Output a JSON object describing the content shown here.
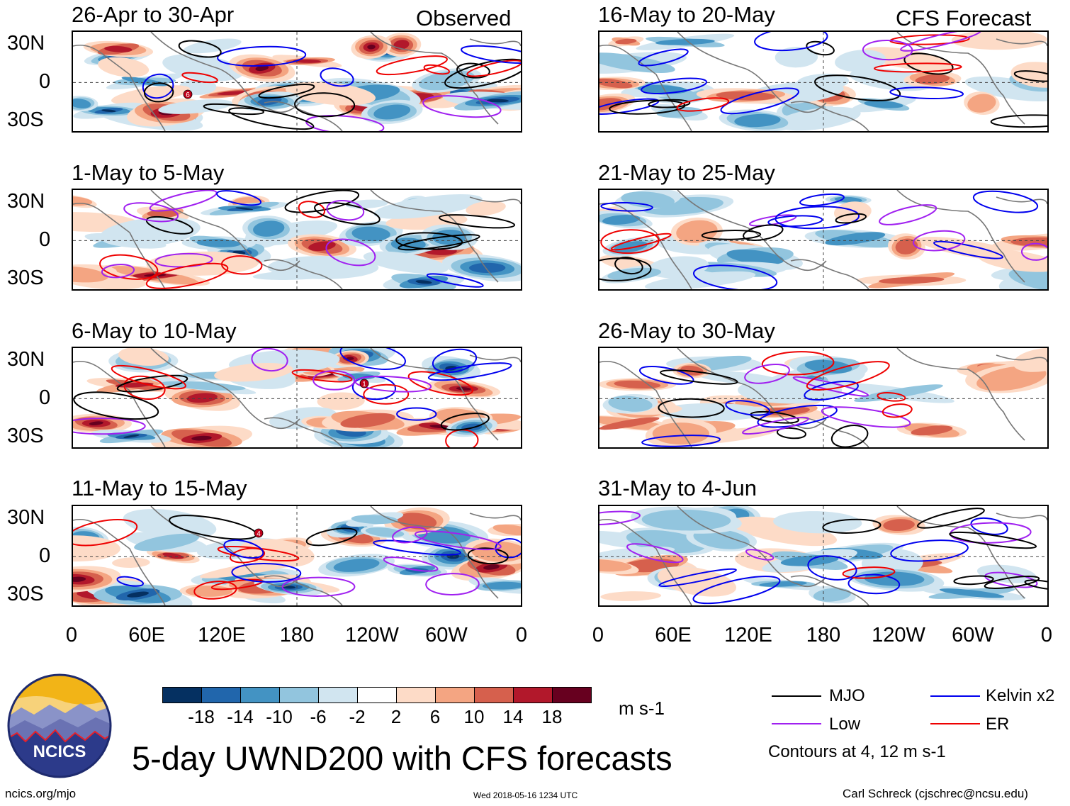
{
  "headers": {
    "observed": "Observed",
    "forecast": "CFS Forecast"
  },
  "panels": [
    {
      "title": "26-Apr to 30-Apr",
      "group": "observed"
    },
    {
      "title": "1-May to 5-May",
      "group": "observed"
    },
    {
      "title": "6-May to 10-May",
      "group": "observed"
    },
    {
      "title": "11-May to 15-May",
      "group": "observed"
    },
    {
      "title": "16-May to 20-May",
      "group": "forecast"
    },
    {
      "title": "21-May to 25-May",
      "group": "forecast"
    },
    {
      "title": "26-May to 30-May",
      "group": "forecast"
    },
    {
      "title": "31-May to 4-Jun",
      "group": "forecast"
    }
  ],
  "lat_labels": [
    "30N",
    "0",
    "30S"
  ],
  "lon_labels": [
    "0",
    "60E",
    "120E",
    "180",
    "120W",
    "60W",
    "0"
  ],
  "colorbar": {
    "labels": [
      "-18",
      "-14",
      "-10",
      "-6",
      "-2",
      "2",
      "6",
      "10",
      "14",
      "18"
    ],
    "colors": [
      "#053061",
      "#2166ac",
      "#4393c3",
      "#92c5de",
      "#d1e5f0",
      "#ffffff",
      "#fddbc7",
      "#f4a582",
      "#d6604d",
      "#b2182b",
      "#67001f"
    ],
    "units": "m s-1"
  },
  "legend": {
    "mjo": {
      "label": "MJO",
      "color": "#000000"
    },
    "kelvin": {
      "label": "Kelvin x2",
      "color": "#0000ee"
    },
    "low": {
      "label": "Low",
      "color": "#a020f0"
    },
    "er": {
      "label": "ER",
      "color": "#ee0000"
    },
    "contour_note": "Contours at 4, 12 m s-1"
  },
  "title": "5-day UWND200 with CFS forecasts",
  "logo_text": "NCICS",
  "footer": {
    "url": "ncics.org/mjo",
    "timestamp": "Wed 2018-05-16 1234 UTC",
    "author": "Carl Schreck (cjschrec@ncsu.edu)"
  },
  "storm_markers": [
    {
      "panel": 0,
      "label": "6"
    },
    {
      "panel": 2,
      "label": "1"
    },
    {
      "panel": 3,
      "label": "4"
    }
  ]
}
